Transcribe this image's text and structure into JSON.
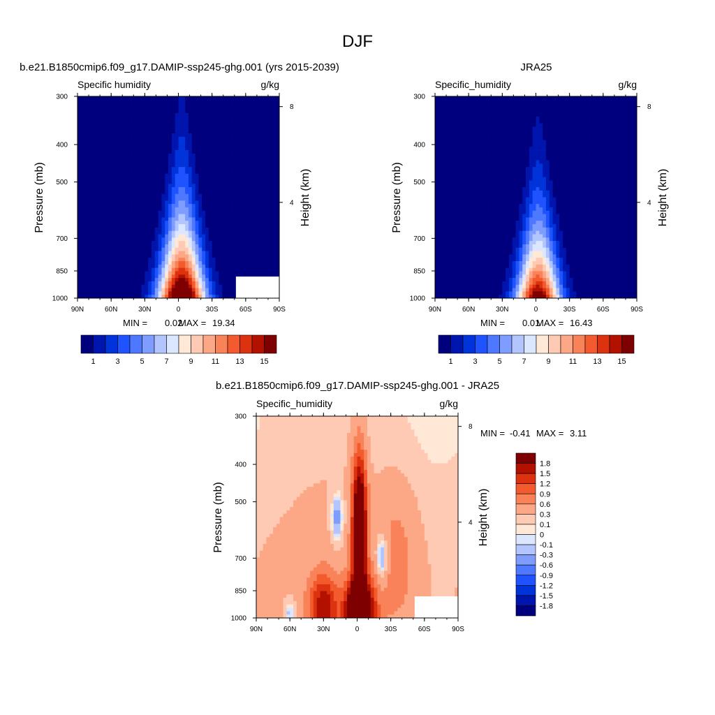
{
  "main_title": "DJF",
  "palette": [
    "#00007f",
    "#0015ad",
    "#0033d9",
    "#1e53ff",
    "#4d78ff",
    "#7f9dff",
    "#b2c5ff",
    "#dbe6ff",
    "#ffe9d6",
    "#ffcab3",
    "#fca785",
    "#f98258",
    "#f35a2d",
    "#dc320f",
    "#b31100",
    "#7f0000"
  ],
  "chart_data": [
    {
      "type": "heatmap",
      "title": "b.e21.B1850cmip6.f09_g17.DAMIP-ssp245-ghg.001 (yrs 2015-2039)",
      "left_label": "Specific humidity",
      "right_label": "g/kg",
      "ylabel": "Pressure (mb)",
      "ylabel_right": "Height (km)",
      "x_ticks": [
        "90N",
        "60N",
        "30N",
        "0",
        "30S",
        "60S",
        "90S"
      ],
      "y_ticks": [
        "300",
        "400",
        "500",
        "700",
        "850",
        "1000"
      ],
      "height_ticks": [
        "8",
        "4"
      ],
      "xlim": [
        90,
        -90
      ],
      "ylim": [
        1000,
        300
      ],
      "stats": {
        "min_label": "MIN =",
        "min": "0.02",
        "max_label": "MAX =",
        "max": "19.34"
      },
      "levels": [
        1,
        2,
        3,
        4,
        5,
        6,
        7,
        8,
        9,
        10,
        11,
        12,
        13,
        14,
        15
      ],
      "colorbar_labels": [
        "1",
        "3",
        "5",
        "7",
        "9",
        "11",
        "13",
        "15"
      ],
      "field": {
        "peak": 19.3,
        "center_lat": -3,
        "base_lat": 0.16,
        "top_lat": 0.05,
        "scale_height": 0.35,
        "background": 0.7
      }
    },
    {
      "type": "heatmap",
      "title": "JRA25",
      "left_label": "Specific_humidity",
      "right_label": "g/kg",
      "ylabel": "Pressure (mb)",
      "ylabel_right": "Height (km)",
      "x_ticks": [
        "90N",
        "60N",
        "30N",
        "0",
        "30S",
        "60S",
        "90S"
      ],
      "y_ticks": [
        "300",
        "400",
        "500",
        "700",
        "850",
        "1000"
      ],
      "height_ticks": [
        "8",
        "4"
      ],
      "xlim": [
        90,
        -90
      ],
      "ylim": [
        1000,
        300
      ],
      "stats": {
        "min_label": "MIN =",
        "min": "0.01",
        "max_label": "MAX =",
        "max": "16.43"
      },
      "levels": [
        1,
        2,
        3,
        4,
        5,
        6,
        7,
        8,
        9,
        10,
        11,
        12,
        13,
        14,
        15
      ],
      "colorbar_labels": [
        "1",
        "3",
        "5",
        "7",
        "9",
        "11",
        "13",
        "15"
      ],
      "field": {
        "peak": 16.4,
        "center_lat": -2,
        "base_lat": 0.15,
        "top_lat": 0.045,
        "scale_height": 0.32,
        "background": 0.6
      }
    },
    {
      "type": "heatmap",
      "title": "b.e21.B1850cmip6.f09_g17.DAMIP-ssp245-ghg.001 - JRA25",
      "left_label": "Specific_humidity",
      "right_label": "g/kg",
      "ylabel": "Pressure (mb)",
      "ylabel_right": "Height (km)",
      "x_ticks": [
        "90N",
        "60N",
        "30N",
        "0",
        "30S",
        "60S",
        "90S"
      ],
      "y_ticks": [
        "300",
        "400",
        "500",
        "700",
        "850",
        "1000"
      ],
      "height_ticks": [
        "8",
        "4"
      ],
      "xlim": [
        90,
        -90
      ],
      "ylim": [
        1000,
        300
      ],
      "stats": {
        "min_label": "MIN =",
        "min": "-0.41",
        "max_label": "MAX =",
        "max": "3.11"
      },
      "levels": [
        -1.8,
        -1.5,
        -1.2,
        -0.9,
        -0.6,
        -0.3,
        -0.1,
        0,
        0.1,
        0.3,
        0.6,
        0.9,
        1.2,
        1.5,
        1.8
      ],
      "colorbar_labels": [
        "1.8",
        "1.5",
        "1.2",
        "0.9",
        "0.6",
        "0.3",
        "0.1",
        "0",
        "-0.1",
        "-0.3",
        "-0.6",
        "-0.9",
        "-1.2",
        "-1.5",
        "-1.8"
      ]
    }
  ]
}
